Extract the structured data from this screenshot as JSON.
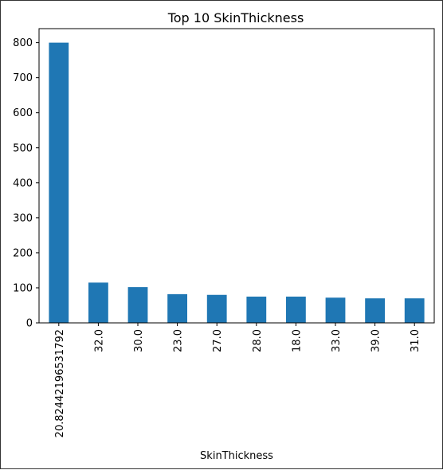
{
  "chart_data": {
    "type": "bar",
    "title": "Top 10 SkinThickness",
    "xlabel": "SkinThickness",
    "ylabel": "",
    "categories": [
      "20.82442196531792",
      "32.0",
      "30.0",
      "23.0",
      "27.0",
      "28.0",
      "18.0",
      "33.0",
      "39.0",
      "31.0"
    ],
    "values": [
      800,
      115,
      102,
      82,
      80,
      75,
      75,
      72,
      70,
      70
    ],
    "ylim": [
      0,
      840
    ],
    "yticks": [
      0,
      100,
      200,
      300,
      400,
      500,
      600,
      700,
      800
    ],
    "grid": false,
    "bar_color": "#1f77b4"
  }
}
